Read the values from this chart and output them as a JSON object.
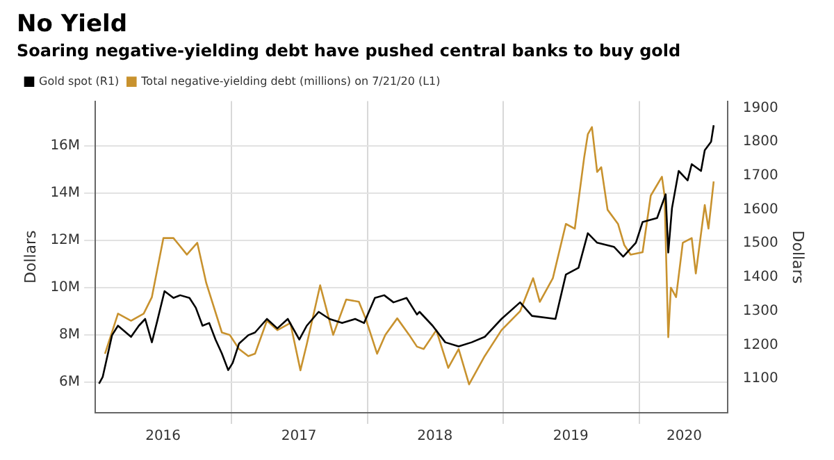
{
  "chart_data": {
    "type": "line",
    "title": "No Yield",
    "subtitle": "Soaring negative-yielding debt have pushed central banks to buy gold",
    "ylabel": "Dollars",
    "y2label": "Dollars",
    "legend": "top left",
    "grid": true,
    "marker": "none",
    "line_style": "solid",
    "xlim": [
      "2016-01-01",
      "2020-08-25"
    ],
    "xticks": [
      {
        "value": "2016-07-01",
        "label": "2016"
      },
      {
        "value": "2017-01-01",
        "label": null
      },
      {
        "value": "2017-07-01",
        "label": "2017"
      },
      {
        "value": "2018-01-01",
        "label": null
      },
      {
        "value": "2018-07-01",
        "label": "2018"
      },
      {
        "value": "2019-01-01",
        "label": null
      },
      {
        "value": "2019-07-01",
        "label": "2019"
      },
      {
        "value": "2020-01-01",
        "label": null
      },
      {
        "value": "2020-05-01",
        "label": "2020"
      }
    ],
    "ylim": [
      4.7,
      17.9
    ],
    "yticks": [
      {
        "value": 6,
        "label": "6M"
      },
      {
        "value": 8,
        "label": "8M"
      },
      {
        "value": 10,
        "label": "10M"
      },
      {
        "value": 12,
        "label": "12M"
      },
      {
        "value": 14,
        "label": "14M"
      },
      {
        "value": 16,
        "label": "16M"
      }
    ],
    "y2lim": [
      1000,
      1920
    ],
    "y2ticks": [
      1100,
      1200,
      1300,
      1400,
      1500,
      1600,
      1700,
      1800,
      1900
    ],
    "series": [
      {
        "name": "Gold spot (R1)",
        "color": "#000000",
        "axis": "y2",
        "x": [
          "2016-01-11",
          "2016-01-21",
          "2016-02-15",
          "2016-03-02",
          "2016-04-06",
          "2016-04-27",
          "2016-05-14",
          "2016-06-01",
          "2016-06-15",
          "2016-07-05",
          "2016-07-29",
          "2016-08-16",
          "2016-09-10",
          "2016-09-27",
          "2016-10-15",
          "2016-11-02",
          "2016-11-19",
          "2016-12-06",
          "2016-12-23",
          "2017-01-04",
          "2017-01-21",
          "2017-02-15",
          "2017-03-05",
          "2017-04-06",
          "2017-05-04",
          "2017-06-01",
          "2017-07-02",
          "2017-07-22",
          "2017-08-23",
          "2017-09-21",
          "2017-10-25",
          "2017-11-29",
          "2017-12-23",
          "2018-01-21",
          "2018-02-15",
          "2018-03-12",
          "2018-04-16",
          "2018-05-14",
          "2018-05-21",
          "2018-06-25",
          "2018-07-29",
          "2018-09-03",
          "2018-10-08",
          "2018-11-12",
          "2018-12-27",
          "2019-02-15",
          "2019-03-19",
          "2019-05-21",
          "2019-06-18",
          "2019-07-22",
          "2019-08-16",
          "2019-09-10",
          "2019-10-25",
          "2019-11-19",
          "2019-12-23",
          "2020-01-10",
          "2020-02-18",
          "2020-03-12",
          "2020-03-19",
          "2020-03-29",
          "2020-04-16",
          "2020-05-10",
          "2020-05-21",
          "2020-06-15",
          "2020-06-25",
          "2020-07-12",
          "2020-07-19"
        ],
        "values": [
          1086,
          1106,
          1229,
          1257,
          1224,
          1257,
          1277,
          1208,
          1269,
          1359,
          1339,
          1347,
          1339,
          1310,
          1257,
          1265,
          1216,
          1175,
          1126,
          1147,
          1204,
          1229,
          1237,
          1277,
          1249,
          1277,
          1216,
          1257,
          1298,
          1277,
          1265,
          1277,
          1265,
          1339,
          1347,
          1326,
          1339,
          1290,
          1298,
          1257,
          1208,
          1196,
          1208,
          1224,
          1277,
          1326,
          1286,
          1277,
          1408,
          1428,
          1530,
          1502,
          1490,
          1461,
          1502,
          1563,
          1575,
          1645,
          1473,
          1604,
          1714,
          1686,
          1734,
          1714,
          1775,
          1800,
          1849
        ]
      },
      {
        "name": "Total negative-yielding debt (millions) on 7/21/20 (L1)",
        "color": "#c8922e",
        "x": [
          "2016-01-27",
          "2016-03-02",
          "2016-04-06",
          "2016-05-10",
          "2016-06-01",
          "2016-07-02",
          "2016-07-29",
          "2016-09-03",
          "2016-10-01",
          "2016-10-25",
          "2016-12-06",
          "2016-12-27",
          "2017-01-21",
          "2017-02-15",
          "2017-03-05",
          "2017-04-06",
          "2017-05-04",
          "2017-06-08",
          "2017-07-05",
          "2017-07-22",
          "2017-08-27",
          "2017-10-01",
          "2017-11-05",
          "2017-12-09",
          "2017-12-27",
          "2018-01-27",
          "2018-02-18",
          "2018-03-22",
          "2018-04-23",
          "2018-05-14",
          "2018-06-01",
          "2018-07-05",
          "2018-08-06",
          "2018-09-03",
          "2018-10-01",
          "2018-11-12",
          "2018-12-27",
          "2019-02-15",
          "2019-03-22",
          "2019-04-09",
          "2019-05-14",
          "2019-06-18",
          "2019-07-12",
          "2019-08-06",
          "2019-08-16",
          "2019-08-27",
          "2019-09-10",
          "2019-09-21",
          "2019-10-08",
          "2019-11-05",
          "2019-11-22",
          "2019-12-09",
          "2020-01-10",
          "2020-02-01",
          "2020-03-02",
          "2020-03-09",
          "2020-03-19",
          "2020-03-26",
          "2020-04-09",
          "2020-04-27",
          "2020-05-21",
          "2020-06-01",
          "2020-06-25",
          "2020-07-05",
          "2020-07-19"
        ],
        "values": [
          7.2,
          8.9,
          8.6,
          8.9,
          9.6,
          12.1,
          12.1,
          11.4,
          11.9,
          10.2,
          8.1,
          8.0,
          7.4,
          7.1,
          7.2,
          8.6,
          8.2,
          8.5,
          6.5,
          7.6,
          10.1,
          8.0,
          9.5,
          9.4,
          8.7,
          7.2,
          8.0,
          8.7,
          8.0,
          7.5,
          7.4,
          8.2,
          6.6,
          7.4,
          5.9,
          7.1,
          8.2,
          9.0,
          10.4,
          9.4,
          10.4,
          12.7,
          12.5,
          15.5,
          16.5,
          16.8,
          14.9,
          15.1,
          13.3,
          12.7,
          11.8,
          11.4,
          11.5,
          13.9,
          14.7,
          13.9,
          7.9,
          10.0,
          9.6,
          11.9,
          12.1,
          10.6,
          13.5,
          12.5,
          14.5
        ]
      }
    ]
  }
}
